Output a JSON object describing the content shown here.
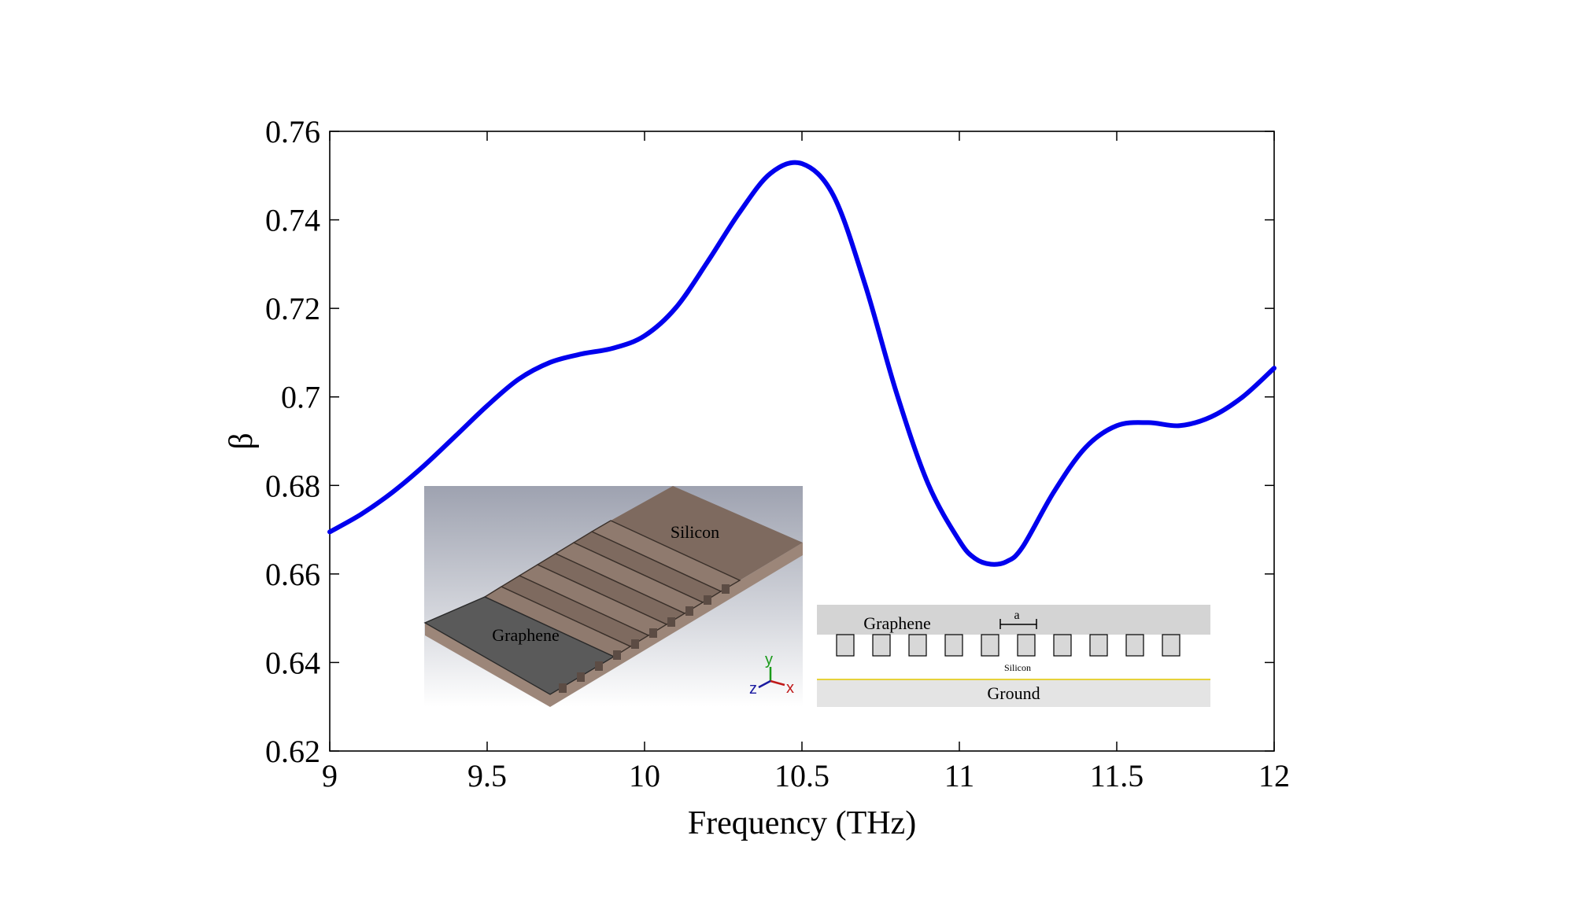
{
  "chart_data": {
    "type": "line",
    "xlabel": "Frequency (THz)",
    "ylabel": "β",
    "xlim": [
      9,
      12
    ],
    "ylim": [
      0.62,
      0.76
    ],
    "x_ticks": [
      "9",
      "9.5",
      "10",
      "10.5",
      "11",
      "11.5",
      "12"
    ],
    "y_ticks": [
      "0.62",
      "0.64",
      "0.66",
      "0.68",
      "0.7",
      "0.72",
      "0.74",
      "0.76"
    ],
    "grid": false,
    "series": [
      {
        "color": "#0000ee",
        "x": [
          9.0,
          9.1,
          9.2,
          9.3,
          9.4,
          9.5,
          9.6,
          9.7,
          9.8,
          9.9,
          10.0,
          10.1,
          10.2,
          10.3,
          10.4,
          10.5,
          10.6,
          10.7,
          10.8,
          10.9,
          11.0,
          11.05,
          11.1,
          11.15,
          11.2,
          11.3,
          11.4,
          11.5,
          11.6,
          11.7,
          11.8,
          11.9,
          12.0
        ],
        "y": [
          0.6695,
          0.6735,
          0.6785,
          0.6845,
          0.6912,
          0.698,
          0.704,
          0.7078,
          0.7097,
          0.711,
          0.7138,
          0.7202,
          0.7305,
          0.7415,
          0.7505,
          0.7527,
          0.7455,
          0.7255,
          0.701,
          0.6805,
          0.6675,
          0.6635,
          0.6622,
          0.6628,
          0.666,
          0.6785,
          0.6885,
          0.6935,
          0.6942,
          0.6935,
          0.6955,
          0.7,
          0.7065
        ]
      }
    ]
  },
  "inset_3d": {
    "labels": {
      "silicon": "Silicon",
      "graphene": "Graphene"
    },
    "axes": {
      "y": "y",
      "z": "z",
      "x": "x"
    },
    "colors": {
      "silicon": "#7e6a5f",
      "graphene": "#5a5a5a"
    }
  },
  "inset_cross": {
    "labels": {
      "graphene": "Graphene",
      "a": "a",
      "silicon": "Silicon",
      "ground": "Ground"
    }
  }
}
